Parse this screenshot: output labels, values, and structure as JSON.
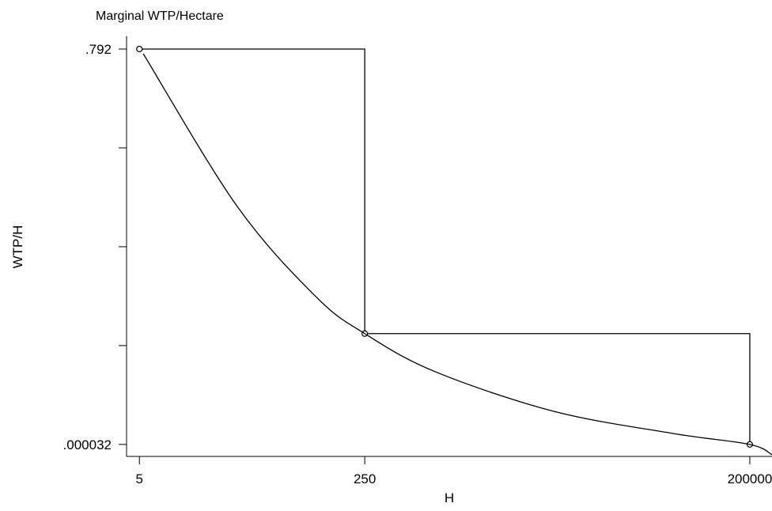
{
  "chart_data": {
    "type": "line",
    "title": "Marginal WTP/Hectare",
    "xlabel": "H",
    "ylabel": "WTP/H",
    "xscale": "log",
    "xlim": [
      4,
      294000
    ],
    "xticks": [
      5,
      250,
      200000
    ],
    "ylim": [
      -0.024,
      0.818
    ],
    "yticks": [
      {
        "value": 0.792,
        "label": ".792"
      },
      {
        "value": 3.2e-05,
        "label": ".000032"
      }
    ],
    "yticks_minor": [
      0.198024,
      0.396016,
      0.594008
    ],
    "grid": false,
    "series": [
      {
        "color": "#000000",
        "marker": "o",
        "drawstyle": "steps-post",
        "x": [
          5,
          250,
          200000
        ],
        "values": [
          0.792,
          0.222,
          3.2e-05
        ]
      },
      {
        "color": "#000000",
        "marker": "none",
        "drawstyle": "smooth",
        "x": [
          5.35,
          27.1,
          107,
          250,
          843,
          6620,
          52100,
          200000,
          294000
        ],
        "values": [
          0.7825,
          0.478,
          0.296,
          0.222,
          0.146,
          0.0665,
          0.0222,
          3.2e-05,
          -0.0206
        ]
      }
    ]
  }
}
